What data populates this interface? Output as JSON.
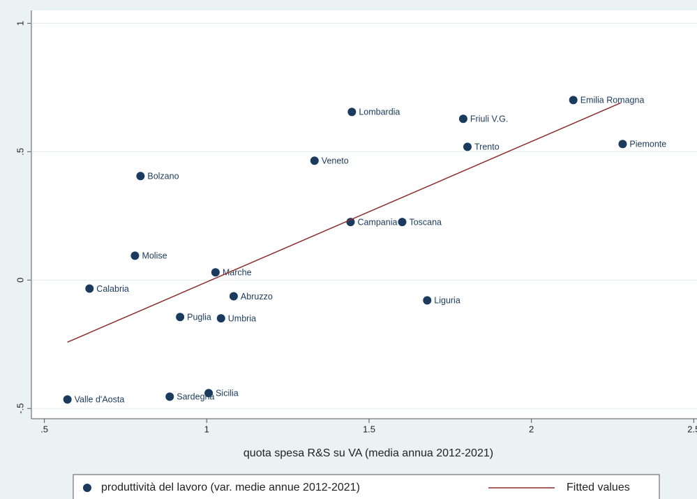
{
  "chart_data": {
    "type": "scatter",
    "x_label": "quota spesa R&S su VA (media annua 2012-2021)",
    "xlim": [
      0.46,
      2.51
    ],
    "ylim": [
      -0.54,
      1.05
    ],
    "xticks": [
      {
        "value": 0.5,
        "label": ".5"
      },
      1,
      1.5,
      2,
      2.5
    ],
    "yticks": [
      {
        "value": -0.5,
        "label": "-.5"
      },
      0,
      {
        "value": 0.5,
        "label": ".5"
      },
      1
    ],
    "grid": true,
    "legend": "bottom",
    "series": [
      {
        "name": "produttività del lavoro (var. medie annue 2012-2021)",
        "type": "scatter",
        "color": "#1a3b5e",
        "labels": [
          "Valle d'Aosta",
          "Sardegna",
          "Sicilia",
          "Calabria",
          "Molise",
          "Bolzano",
          "Puglia",
          "Umbria",
          "Marche",
          "Abruzzo",
          "Veneto",
          "Lombardia",
          "Campania",
          "Toscana",
          "Liguria",
          "Friuli V.G.",
          "Trento",
          "Emilia Romagna",
          "Piemonte"
        ],
        "x": [
          0.571,
          0.886,
          1.006,
          0.639,
          0.779,
          0.796,
          0.918,
          1.044,
          1.027,
          1.083,
          1.332,
          1.447,
          1.443,
          1.602,
          1.679,
          1.79,
          1.803,
          2.129,
          2.281
        ],
        "y": [
          -0.465,
          -0.454,
          -0.44,
          -0.033,
          0.095,
          0.405,
          -0.144,
          -0.149,
          0.03,
          -0.063,
          0.465,
          0.655,
          0.226,
          0.226,
          -0.079,
          0.628,
          0.519,
          0.701,
          0.53
        ]
      },
      {
        "name": "Fitted values",
        "type": "line",
        "color": "#8b2c2c",
        "x": [
          0.571,
          2.275
        ],
        "y": [
          -0.242,
          0.69
        ]
      }
    ]
  }
}
